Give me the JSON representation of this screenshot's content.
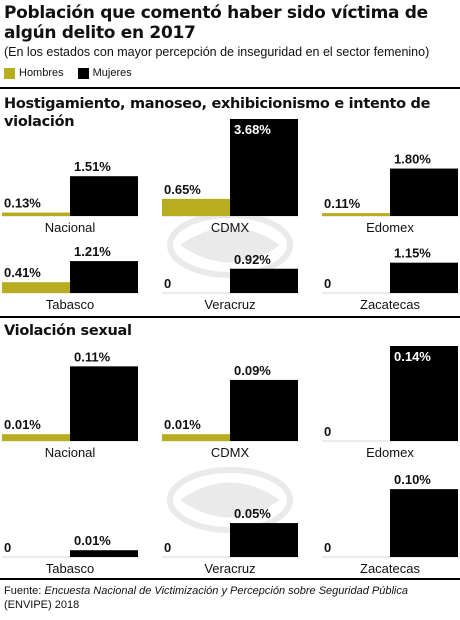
{
  "title": "Población que comentó haber sido víctima de algún delito en 2017",
  "subtitle": "(En los estados con mayor percepción de inseguridad en el sector femenino)",
  "colors": {
    "hombres": "#b8ad1e",
    "mujeres": "#000000"
  },
  "legend": [
    {
      "label": "Hombres",
      "color": "#b8ad1e"
    },
    {
      "label": "Mujeres",
      "color": "#000000"
    }
  ],
  "sections": [
    {
      "title": "Hostigamiento, manoseo, exhibicionismo e intento de violación"
    },
    {
      "title": "Violación sexual"
    }
  ],
  "chart_data": [
    {
      "type": "bar",
      "title": "Hostigamiento, manoseo, exhibicionismo e intento de violación",
      "categories": [
        "Nacional",
        "CDMX",
        "Edomex",
        "Tabasco",
        "Veracruz",
        "Zacatecas"
      ],
      "series": [
        {
          "name": "Hombres",
          "values": [
            0.13,
            0.65,
            0.11,
            0.41,
            0,
            0
          ],
          "labels": [
            "0.13%",
            "0.65%",
            "0.11%",
            "0.41%",
            "0",
            "0"
          ]
        },
        {
          "name": "Mujeres",
          "values": [
            1.51,
            3.68,
            1.8,
            1.21,
            0.92,
            1.15
          ],
          "labels": [
            "1.51%",
            "3.68%",
            "1.80%",
            "1.21%",
            "0.92%",
            "1.15%"
          ]
        }
      ],
      "ylim": [
        0,
        3.68
      ]
    },
    {
      "type": "bar",
      "title": "Violación sexual",
      "categories": [
        "Nacional",
        "CDMX",
        "Edomex",
        "Tabasco",
        "Veracruz",
        "Zacatecas"
      ],
      "series": [
        {
          "name": "Hombres",
          "values": [
            0.01,
            0.01,
            0,
            0,
            0,
            0
          ],
          "labels": [
            "0.01%",
            "0.01%",
            "0",
            "0",
            "0",
            "0"
          ]
        },
        {
          "name": "Mujeres",
          "values": [
            0.11,
            0.09,
            0.14,
            0.01,
            0.05,
            0.1
          ],
          "labels": [
            "0.11%",
            "0.09%",
            "0.14%",
            "0.01%",
            "0.05%",
            "0.10%"
          ]
        }
      ],
      "ylim": [
        0,
        0.14
      ]
    }
  ],
  "source": {
    "prefix": "Fuente: ",
    "name": "Encuesta Nacional de Victimización y Percepción sobre Seguridad Pública",
    "suffix": " (ENVIPE) 2018"
  }
}
